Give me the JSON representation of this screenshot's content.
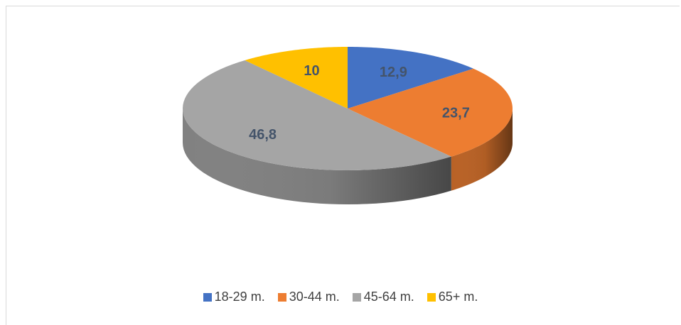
{
  "chart_data": {
    "type": "pie",
    "style": "3d",
    "title": "",
    "categories": [
      "18-29 m.",
      "30-44 m.",
      "45-64 m.",
      "65+ m."
    ],
    "values": [
      12.9,
      23.7,
      46.8,
      10
    ],
    "data_labels": [
      "12,9",
      "23,7",
      "46,8",
      "10"
    ],
    "colors": [
      "#4472c4",
      "#ed7d31",
      "#a5a5a5",
      "#ffc000"
    ],
    "legend_position": "bottom",
    "start": "top, clockwise"
  }
}
